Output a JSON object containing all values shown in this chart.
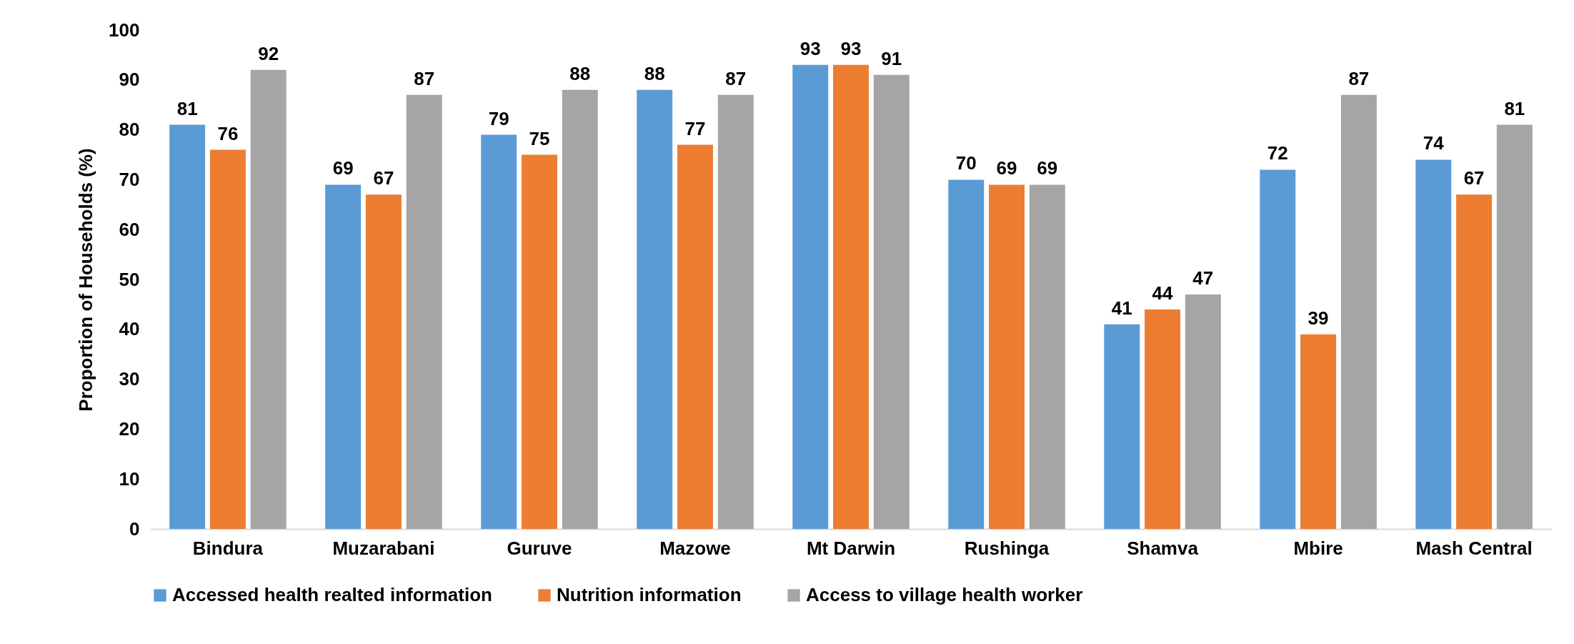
{
  "chart_data": {
    "type": "bar",
    "ylabel": "Proportion of Households (%)",
    "categories": [
      "Bindura",
      "Muzarabani",
      "Guruve",
      "Mazowe",
      "Mt Darwin",
      "Rushinga",
      "Shamva",
      "Mbire",
      "Mash Central"
    ],
    "series": [
      {
        "name": "Accessed health realted information",
        "color": "#5b9bd5",
        "values": [
          81,
          69,
          79,
          88,
          93,
          70,
          41,
          72,
          74
        ]
      },
      {
        "name": "Nutrition information",
        "color": "#ed7d31",
        "values": [
          76,
          67,
          75,
          77,
          93,
          69,
          44,
          39,
          67
        ]
      },
      {
        "name": "Access to village health worker",
        "color": "#a5a5a5",
        "values": [
          92,
          87,
          88,
          87,
          91,
          69,
          47,
          87,
          81
        ]
      }
    ],
    "ylim": [
      0,
      100
    ],
    "yticks": [
      0,
      10,
      20,
      30,
      40,
      50,
      60,
      70,
      80,
      90,
      100
    ],
    "data_labels": true,
    "legend": "bottom"
  }
}
